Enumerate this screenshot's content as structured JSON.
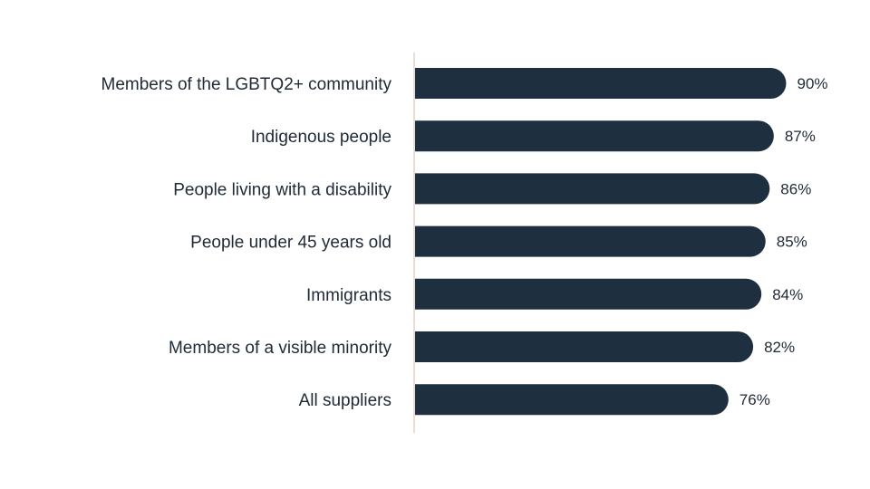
{
  "colors": {
    "bar": "#1e3040",
    "axis": "#e3cfc7",
    "text": "#1f2a36",
    "background": "#ffffff"
  },
  "chart_data": {
    "type": "bar",
    "orientation": "horizontal",
    "categories": [
      "Members of the LGBTQ2+ community",
      "Indigenous people",
      "People living with a disability",
      "People under 45 years old",
      "Immigrants",
      "Members of a visible minority",
      "All suppliers"
    ],
    "values": [
      90,
      87,
      86,
      85,
      84,
      82,
      76
    ],
    "value_labels": [
      "90%",
      "87%",
      "86%",
      "85%",
      "84%",
      "82%",
      "76%"
    ],
    "unit": "%",
    "xlim": [
      0,
      100
    ],
    "grid": false,
    "legend": "none",
    "title": "",
    "xlabel": "",
    "ylabel": ""
  }
}
